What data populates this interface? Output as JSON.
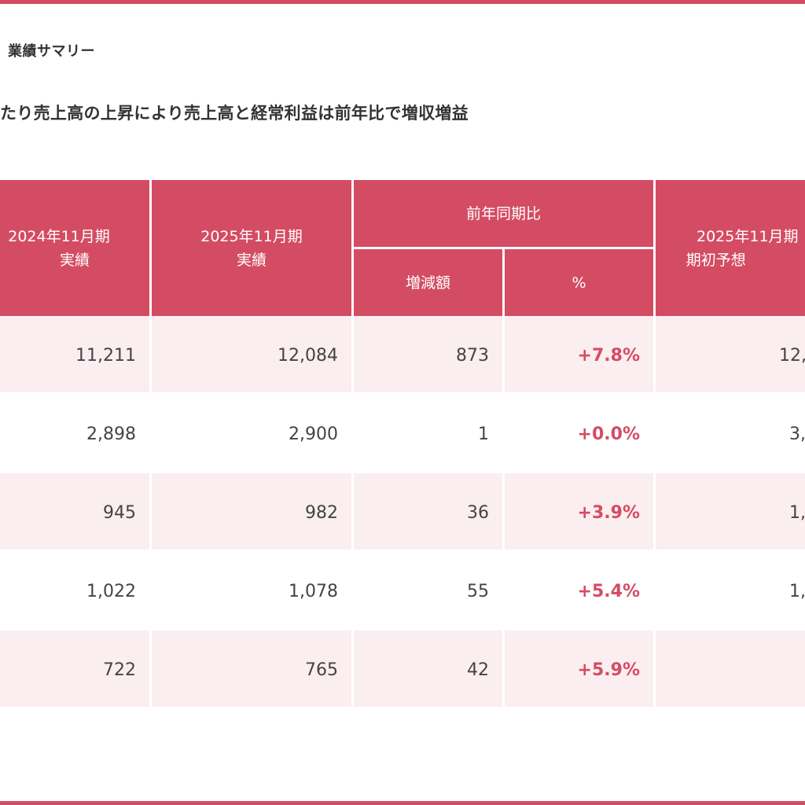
{
  "section_title": "業績サマリー",
  "headline": "たり売上高の上昇により売上高と経常利益は前年比で増収増益",
  "table": {
    "headers": {
      "col1": [
        "2024年11月期",
        "実績"
      ],
      "col2": [
        "2025年11月期",
        "実績"
      ],
      "group": "前年同期比",
      "col3": "増減額",
      "col4": "%",
      "col5": [
        "2025年11月期",
        "期初予想"
      ]
    },
    "rows": [
      {
        "prev": "11,211",
        "curr": "12,084",
        "diff": "873",
        "pct": "+7.8%",
        "forecast": "12,"
      },
      {
        "prev": "2,898",
        "curr": "2,900",
        "diff": "1",
        "pct": "+0.0%",
        "forecast": "3,"
      },
      {
        "prev": "945",
        "curr": "982",
        "diff": "36",
        "pct": "+3.9%",
        "forecast": "1,"
      },
      {
        "prev": "1,022",
        "curr": "1,078",
        "diff": "55",
        "pct": "+5.4%",
        "forecast": "1,"
      },
      {
        "prev": "722",
        "curr": "765",
        "diff": "42",
        "pct": "+5.9%",
        "forecast": ""
      }
    ]
  },
  "colors": {
    "accent": "#d44c63",
    "row_tint": "#fbeef0"
  }
}
